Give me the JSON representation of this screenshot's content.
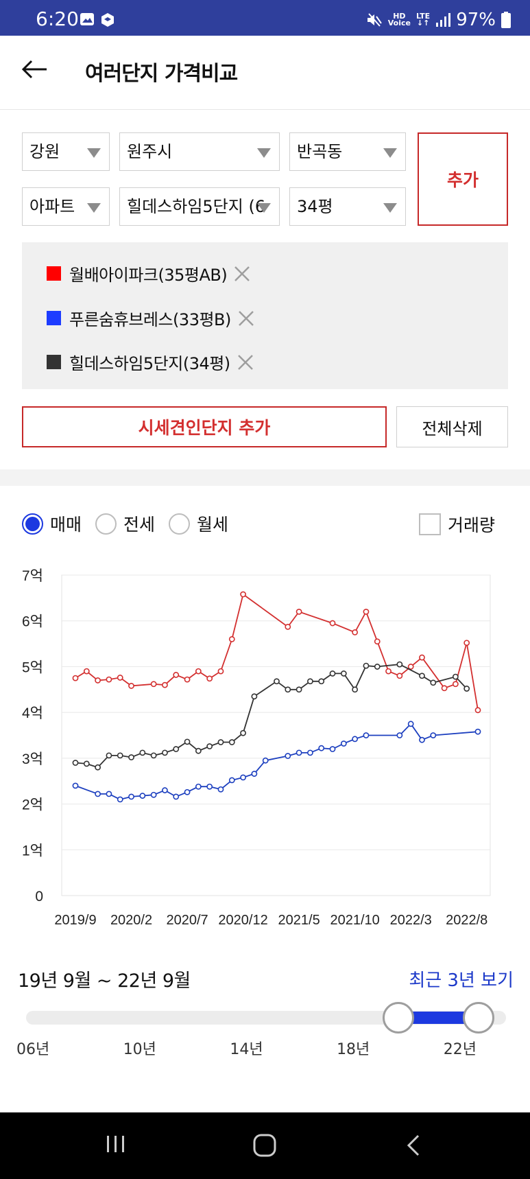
{
  "status": {
    "time": "6:20",
    "battery": "97%",
    "hd": "HD",
    "voice": "Voice",
    "lte": "LTE"
  },
  "header": {
    "title": "여러단지 가격비교"
  },
  "filters": {
    "region": "강원",
    "city": "원주시",
    "dong": "반곡동",
    "type": "아파트",
    "complex": "힐데스하임5단지 (6",
    "size": "34평",
    "add_label": "추가"
  },
  "compare_items": [
    {
      "label": "월배아이파크(35평AB)",
      "color": "#ff0000"
    },
    {
      "label": "푸른숨휴브레스(33평B)",
      "color": "#1d3cff"
    },
    {
      "label": "힐데스하임5단지(34평)",
      "color": "#333333"
    }
  ],
  "buttons": {
    "add_recommended": "시세견인단지 추가",
    "delete_all": "전체삭제"
  },
  "options": {
    "sale": "매매",
    "jeonse": "전세",
    "monthly": "월세",
    "volume": "거래량",
    "selected": "매매"
  },
  "chart_data": {
    "type": "line",
    "x_labels": [
      "2019/9",
      "2020/2",
      "2020/7",
      "2020/12",
      "2021/5",
      "2021/10",
      "2022/3",
      "2022/8"
    ],
    "y_ticks": [
      "0",
      "1억",
      "2억",
      "3억",
      "4억",
      "5억",
      "6억",
      "7억"
    ],
    "ylim": [
      0,
      7
    ],
    "y_unit": "억",
    "series": [
      {
        "name": "월배아이파크(35평AB)",
        "color": "#d32f2f",
        "points": [
          [
            "2019/9",
            4.75
          ],
          [
            "2019/10",
            4.9
          ],
          [
            "2019/11",
            4.7
          ],
          [
            "2019/12",
            4.72
          ],
          [
            "2020/1",
            4.76
          ],
          [
            "2020/2",
            4.58
          ],
          [
            "2020/4",
            4.62
          ],
          [
            "2020/5",
            4.6
          ],
          [
            "2020/6",
            4.82
          ],
          [
            "2020/7",
            4.72
          ],
          [
            "2020/8",
            4.9
          ],
          [
            "2020/9",
            4.74
          ],
          [
            "2020/10",
            4.9
          ],
          [
            "2020/11",
            5.6
          ],
          [
            "2020/12",
            6.58
          ],
          [
            "2021/4",
            5.87
          ],
          [
            "2021/5",
            6.2
          ],
          [
            "2021/8",
            5.95
          ],
          [
            "2021/10",
            5.75
          ],
          [
            "2021/11",
            6.2
          ],
          [
            "2021/12",
            5.55
          ],
          [
            "2022/1",
            4.9
          ],
          [
            "2022/2",
            4.8
          ],
          [
            "2022/3",
            5.0
          ],
          [
            "2022/4",
            5.2
          ],
          [
            "2022/6",
            4.53
          ],
          [
            "2022/7",
            4.62
          ],
          [
            "2022/8",
            5.52
          ],
          [
            "2022/9",
            4.05
          ]
        ]
      },
      {
        "name": "푸른숨휴브레스(33평B)",
        "color": "#1c3fbf",
        "points": [
          [
            "2019/9",
            2.4
          ],
          [
            "2019/11",
            2.22
          ],
          [
            "2019/12",
            2.22
          ],
          [
            "2020/1",
            2.1
          ],
          [
            "2020/2",
            2.16
          ],
          [
            "2020/3",
            2.18
          ],
          [
            "2020/4",
            2.2
          ],
          [
            "2020/5",
            2.3
          ],
          [
            "2020/6",
            2.16
          ],
          [
            "2020/7",
            2.26
          ],
          [
            "2020/8",
            2.38
          ],
          [
            "2020/9",
            2.38
          ],
          [
            "2020/10",
            2.32
          ],
          [
            "2020/11",
            2.52
          ],
          [
            "2020/12",
            2.58
          ],
          [
            "2021/1",
            2.66
          ],
          [
            "2021/2",
            2.95
          ],
          [
            "2021/4",
            3.05
          ],
          [
            "2021/5",
            3.12
          ],
          [
            "2021/6",
            3.12
          ],
          [
            "2021/7",
            3.22
          ],
          [
            "2021/8",
            3.2
          ],
          [
            "2021/9",
            3.32
          ],
          [
            "2021/10",
            3.42
          ],
          [
            "2021/11",
            3.5
          ],
          [
            "2022/2",
            3.5
          ],
          [
            "2022/3",
            3.75
          ],
          [
            "2022/4",
            3.4
          ],
          [
            "2022/5",
            3.5
          ],
          [
            "2022/9",
            3.58
          ]
        ]
      },
      {
        "name": "힐데스하임5단지(34평)",
        "color": "#333333",
        "points": [
          [
            "2019/9",
            2.9
          ],
          [
            "2019/10",
            2.88
          ],
          [
            "2019/11",
            2.8
          ],
          [
            "2019/12",
            3.06
          ],
          [
            "2020/1",
            3.06
          ],
          [
            "2020/2",
            3.02
          ],
          [
            "2020/3",
            3.12
          ],
          [
            "2020/4",
            3.06
          ],
          [
            "2020/5",
            3.12
          ],
          [
            "2020/6",
            3.2
          ],
          [
            "2020/7",
            3.36
          ],
          [
            "2020/8",
            3.16
          ],
          [
            "2020/9",
            3.26
          ],
          [
            "2020/10",
            3.35
          ],
          [
            "2020/11",
            3.35
          ],
          [
            "2020/12",
            3.55
          ],
          [
            "2021/1",
            4.35
          ],
          [
            "2021/3",
            4.68
          ],
          [
            "2021/4",
            4.5
          ],
          [
            "2021/5",
            4.5
          ],
          [
            "2021/6",
            4.68
          ],
          [
            "2021/7",
            4.68
          ],
          [
            "2021/8",
            4.85
          ],
          [
            "2021/9",
            4.85
          ],
          [
            "2021/10",
            4.5
          ],
          [
            "2021/11",
            5.02
          ],
          [
            "2021/12",
            5.0
          ],
          [
            "2022/2",
            5.05
          ],
          [
            "2022/4",
            4.8
          ],
          [
            "2022/5",
            4.65
          ],
          [
            "2022/7",
            4.78
          ],
          [
            "2022/8",
            4.52
          ]
        ]
      }
    ]
  },
  "range": {
    "text": "19년 9월 ~ 22년 9월",
    "link": "최근 3년 보기",
    "ticks": [
      "06년",
      "10년",
      "14년",
      "18년",
      "22년"
    ],
    "start_year": 2019.7,
    "end_year": 2022.7,
    "min_year": 2006,
    "max_year": 2022.7
  }
}
